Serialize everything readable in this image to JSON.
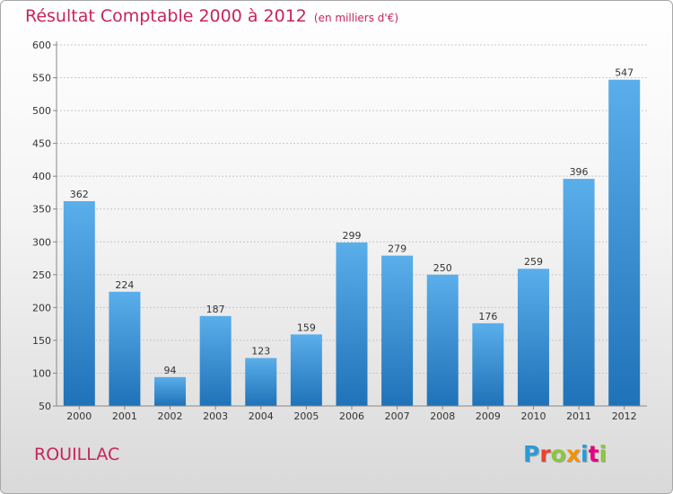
{
  "title": "Résultat Comptable 2000 à 2012",
  "subtitle": "(en milliers d'€)",
  "commune": "ROUILLAC",
  "logo": {
    "letters": [
      "P",
      "r",
      "o",
      "x",
      "i",
      "t",
      "i"
    ],
    "colors": [
      "#2b9bd8",
      "#e9422e",
      "#8cc63f",
      "#f39200",
      "#2b9bd8",
      "#e6007e",
      "#8cc63f"
    ]
  },
  "colors": {
    "title": "#c8245a",
    "bar_light": "#5aaeea",
    "bar_dark": "#1f72b8"
  },
  "chart_data": {
    "type": "bar",
    "title": "Résultat Comptable 2000 à 2012",
    "subtitle": "(en milliers d'€)",
    "categories": [
      "2000",
      "2001",
      "2002",
      "2003",
      "2004",
      "2005",
      "2006",
      "2007",
      "2008",
      "2009",
      "2010",
      "2011",
      "2012"
    ],
    "values": [
      362,
      224,
      94,
      187,
      123,
      159,
      299,
      279,
      250,
      176,
      259,
      396,
      547
    ],
    "ylim": [
      50,
      600
    ],
    "yticks": [
      50,
      100,
      150,
      200,
      250,
      300,
      350,
      400,
      450,
      500,
      550,
      600
    ],
    "grid": "horizontal",
    "legend": "none"
  }
}
